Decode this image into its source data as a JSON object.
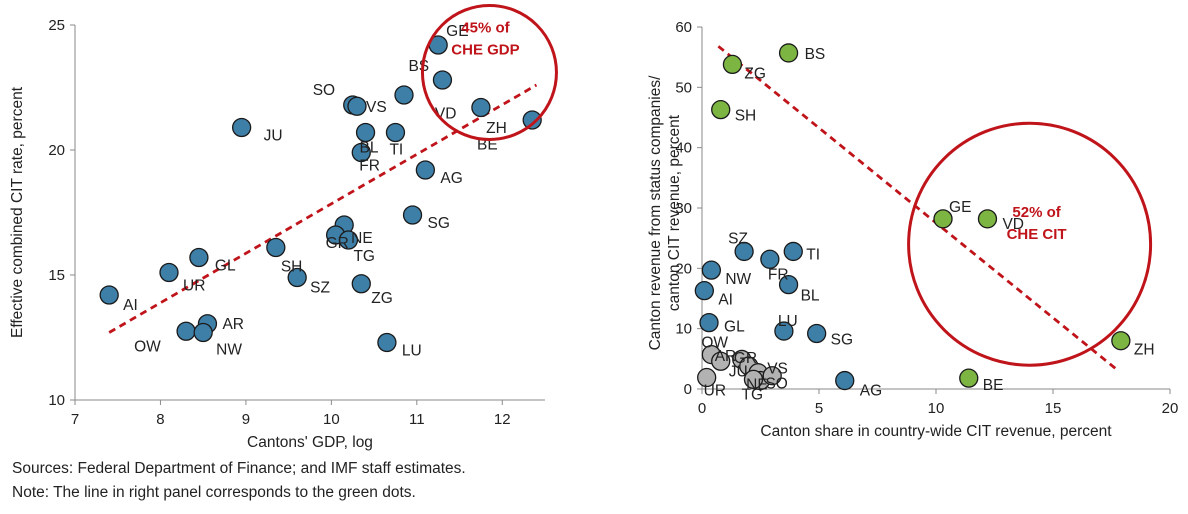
{
  "chart_data": [
    {
      "type": "scatter",
      "xlabel": "Cantons' GDP, log",
      "ylabel": "Effective combined CIT rate, percent",
      "xlim": [
        7,
        12.5
      ],
      "ylim": [
        10,
        25
      ],
      "xticks": [
        7,
        8,
        9,
        10,
        11,
        12
      ],
      "yticks": [
        10,
        15,
        20,
        25
      ],
      "marker_color": "#3e7fa8",
      "trendline": {
        "style": "dashed",
        "color": "#c0141b",
        "x": [
          7.4,
          12.4
        ],
        "y": [
          12.7,
          22.6
        ]
      },
      "annotation": {
        "lines": [
          "45% of",
          "CHE GDP"
        ],
        "color": "#c0141b",
        "circle_center": [
          11.85,
          23.1
        ]
      },
      "points": [
        {
          "label": "GE",
          "x": 11.25,
          "y": 24.2
        },
        {
          "label": "BS",
          "x": 11.3,
          "y": 22.8
        },
        {
          "label": "SO",
          "x": 10.25,
          "y": 21.8
        },
        {
          "label": "VS",
          "x": 10.85,
          "y": 22.2
        },
        {
          "label": "VD",
          "x": 11.75,
          "y": 21.7
        },
        {
          "label": "ZH",
          "x": 12.35,
          "y": 21.2
        },
        {
          "label": "JU",
          "x": 8.95,
          "y": 20.9
        },
        {
          "label": "BL",
          "x": 10.4,
          "y": 20.7
        },
        {
          "label": "TI",
          "x": 10.75,
          "y": 20.7
        },
        {
          "label": "BE",
          "x": 10.3,
          "y": 21.75
        },
        {
          "label": "FR",
          "x": 10.35,
          "y": 19.9
        },
        {
          "label": "AG",
          "x": 11.1,
          "y": 19.2
        },
        {
          "label": "SG",
          "x": 10.95,
          "y": 17.4
        },
        {
          "label": "NE",
          "x": 10.15,
          "y": 17.0
        },
        {
          "label": "GR",
          "x": 10.05,
          "y": 16.6
        },
        {
          "label": "TG",
          "x": 10.2,
          "y": 16.4
        },
        {
          "label": "SH",
          "x": 9.35,
          "y": 16.1
        },
        {
          "label": "GL",
          "x": 8.45,
          "y": 15.7
        },
        {
          "label": "UR",
          "x": 8.1,
          "y": 15.1
        },
        {
          "label": "SZ",
          "x": 9.6,
          "y": 14.9
        },
        {
          "label": "ZG",
          "x": 10.35,
          "y": 14.65
        },
        {
          "label": "AI",
          "x": 7.4,
          "y": 14.2
        },
        {
          "label": "AR",
          "x": 8.55,
          "y": 13.05
        },
        {
          "label": "OW",
          "x": 8.3,
          "y": 12.75
        },
        {
          "label": "NW",
          "x": 8.5,
          "y": 12.7
        },
        {
          "label": "LU",
          "x": 10.65,
          "y": 12.3
        }
      ]
    },
    {
      "type": "scatter",
      "xlabel": "Canton share in country-wide CIT revenue, percent",
      "ylabel": "Canton revenue from status companies/ canton CIT revenue, percent",
      "xlim": [
        0,
        20
      ],
      "ylim": [
        0,
        60
      ],
      "xticks": [
        0,
        5,
        10,
        15,
        20
      ],
      "yticks": [
        0,
        10,
        20,
        30,
        40,
        50,
        60
      ],
      "colors": {
        "green": "#7db543",
        "blue": "#3e7fa8",
        "gray": "#b2b2b2"
      },
      "trendline": {
        "style": "dashed",
        "color": "#c0141b",
        "x": [
          0.7,
          17.8
        ],
        "y": [
          56.8,
          3.0
        ]
      },
      "annotation": {
        "lines": [
          "52% of",
          "CHE CIT"
        ],
        "color": "#c0141b",
        "circle_center": [
          14,
          24
        ]
      },
      "points": [
        {
          "label": "BS",
          "x": 3.7,
          "y": 55.7,
          "color": "green"
        },
        {
          "label": "ZG",
          "x": 1.3,
          "y": 53.8,
          "color": "green"
        },
        {
          "label": "SH",
          "x": 0.8,
          "y": 46.3,
          "color": "green"
        },
        {
          "label": "GE",
          "x": 10.3,
          "y": 28.2,
          "color": "green"
        },
        {
          "label": "VD",
          "x": 12.2,
          "y": 28.2,
          "color": "green"
        },
        {
          "label": "ZH",
          "x": 17.9,
          "y": 8.0,
          "color": "green"
        },
        {
          "label": "BE",
          "x": 11.4,
          "y": 1.8,
          "color": "green"
        },
        {
          "label": "SZ",
          "x": 1.8,
          "y": 22.8,
          "color": "blue"
        },
        {
          "label": "TI",
          "x": 3.9,
          "y": 22.8,
          "color": "blue"
        },
        {
          "label": "FR",
          "x": 2.9,
          "y": 21.5,
          "color": "blue"
        },
        {
          "label": "NW",
          "x": 0.4,
          "y": 19.7,
          "color": "blue"
        },
        {
          "label": "BL",
          "x": 3.7,
          "y": 17.3,
          "color": "blue"
        },
        {
          "label": "AI",
          "x": 0.1,
          "y": 16.3,
          "color": "blue"
        },
        {
          "label": "GL",
          "x": 0.3,
          "y": 11.0,
          "color": "blue"
        },
        {
          "label": "LU",
          "x": 3.5,
          "y": 9.6,
          "color": "blue"
        },
        {
          "label": "SG",
          "x": 4.9,
          "y": 9.2,
          "color": "blue"
        },
        {
          "label": "AG",
          "x": 6.1,
          "y": 1.4,
          "color": "blue"
        },
        {
          "label": "OW",
          "x": 0.4,
          "y": 5.7,
          "color": "gray"
        },
        {
          "label": "AR",
          "x": 0.8,
          "y": 4.6,
          "color": "gray"
        },
        {
          "label": "JU",
          "x": 1.7,
          "y": 4.9,
          "color": "gray"
        },
        {
          "label": "GR",
          "x": 2.0,
          "y": 3.8,
          "color": "gray"
        },
        {
          "label": "NE",
          "x": 2.4,
          "y": 2.7,
          "color": "gray"
        },
        {
          "label": "TG",
          "x": 2.5,
          "y": 1.4,
          "color": "gray"
        },
        {
          "label": "VS",
          "x": 3.0,
          "y": 2.2,
          "color": "gray"
        },
        {
          "label": "SO",
          "x": 2.2,
          "y": 1.6,
          "color": "gray"
        },
        {
          "label": "UR",
          "x": 0.2,
          "y": 1.9,
          "color": "gray"
        }
      ]
    }
  ],
  "footer": {
    "sources": "Sources: Federal Department of Finance; and IMF staff estimates.",
    "note": "Note: The line in right panel corresponds to the green dots."
  }
}
